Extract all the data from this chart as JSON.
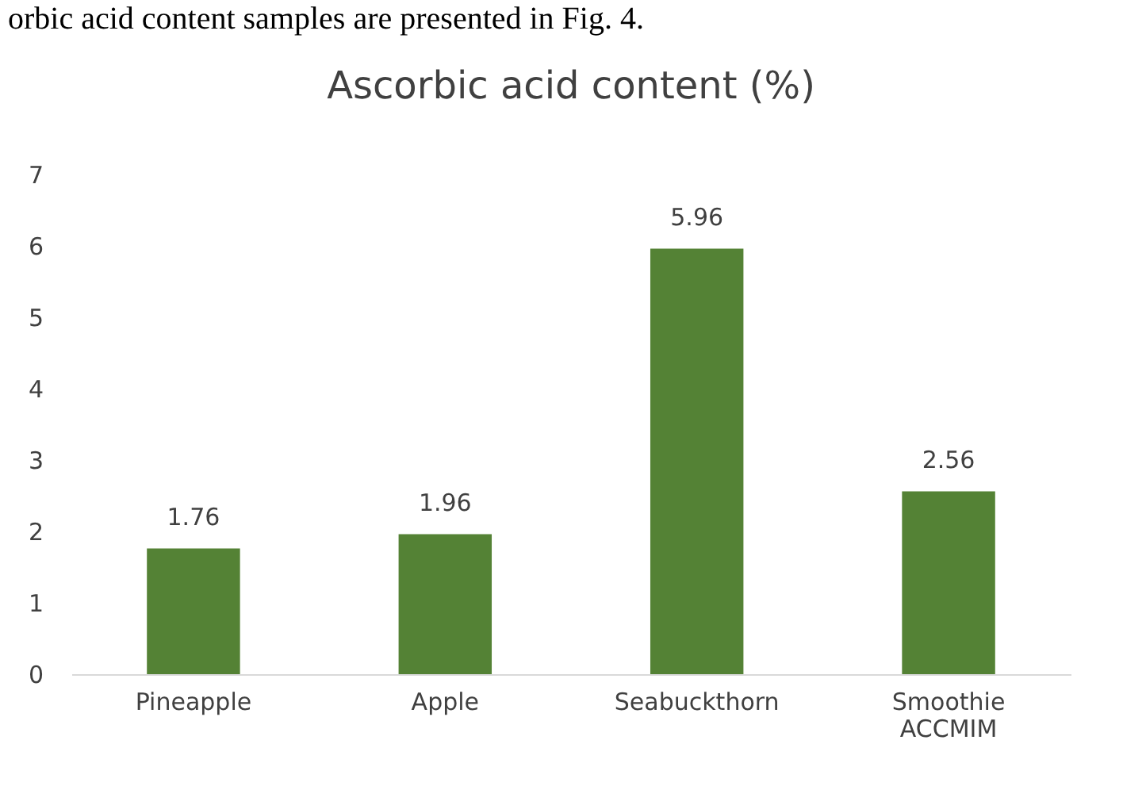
{
  "chart_data": {
    "type": "bar",
    "title": "Ascorbic acid content  (%)",
    "annotations": [
      "orbic acid content samples are presented in Fig. 4."
    ],
    "categories": [
      "Pineapple",
      "Apple",
      "Seabuckthorn",
      "Smoothie ACCMIM"
    ],
    "values": [
      1.76,
      1.96,
      5.96,
      2.56
    ],
    "color": "#548235",
    "ylim": [
      0,
      7
    ],
    "yticks": [
      0,
      1,
      2,
      3,
      4,
      5,
      6,
      7
    ],
    "grid": false,
    "data_labels": true
  }
}
